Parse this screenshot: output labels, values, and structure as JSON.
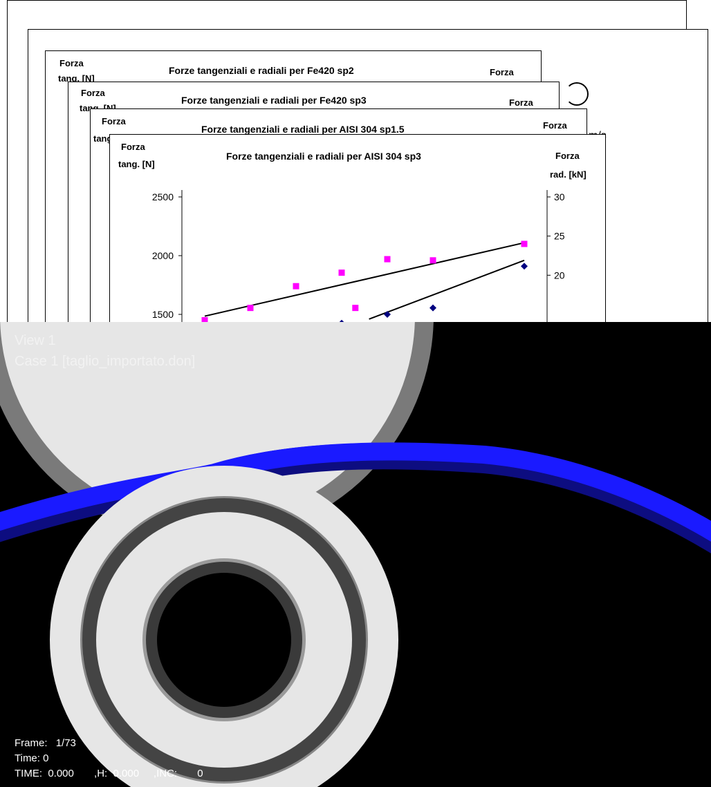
{
  "sheets": {
    "back_fragment": "m/s",
    "fe420_sp2": {
      "title": "Forze tangenziali e radiali per Fe420 sp2",
      "left_label_1": "Forza",
      "left_label_2": "tang. [N]",
      "right_label_1": "Forza"
    },
    "fe420_sp3": {
      "title": "Forze tangenziali e radiali per Fe420 sp3",
      "left_label_1": "Forza",
      "left_label_2": "tang. [N]",
      "right_label_1": "Forza"
    },
    "aisi304_sp15": {
      "title": "Forze tangenziali e radiali per AISI 304 sp1.5",
      "left_label_1": "Forza",
      "left_label_2": "tang. [N",
      "right_label_1": "Forza"
    }
  },
  "chart_data": {
    "type": "scatter",
    "title": "Forze tangenziali e radiali per AISI 304 sp3",
    "ylabel_left_1": "Forza",
    "ylabel_left_2": "tang. [N]",
    "ylabel_right_1": "Forza",
    "ylabel_right_2": "rad. [kN]",
    "y_left_ticks": [
      "2500",
      "2000",
      "1500"
    ],
    "y_right_ticks": [
      "30",
      "25",
      "20"
    ],
    "ylim_left": [
      1500,
      2500
    ],
    "ylim_right": [
      15,
      30
    ],
    "series": [
      {
        "color": "#ff00ff",
        "marker": "square",
        "points": [
          [
            1,
            1450
          ],
          [
            2,
            1555
          ],
          [
            3,
            1740
          ],
          [
            4,
            1855
          ],
          [
            4.3,
            1555
          ],
          [
            5,
            1970
          ],
          [
            6,
            1960
          ],
          [
            8,
            2100
          ]
        ],
        "trend": [
          [
            1,
            1485
          ],
          [
            8,
            2110
          ]
        ]
      },
      {
        "color": "#000080",
        "marker": "diamond",
        "points": [
          [
            4,
            1425
          ],
          [
            5,
            1500
          ],
          [
            6,
            1555
          ],
          [
            8,
            1910
          ]
        ],
        "trend": [
          [
            4.6,
            1460
          ],
          [
            8,
            1960
          ]
        ]
      }
    ]
  },
  "simulation": {
    "view_label": "View 1",
    "case_label": "Case 1  [taglio_importato.don]",
    "frame_label": "Frame:",
    "frame_value": "1/73",
    "time_label": "Time: 0",
    "time_line": "TIME:  0.000       ,H:  0.000     ,INC:       0",
    "colors": {
      "background": "#000000",
      "strip": "#1a1aff",
      "roll": "#e6e6e6",
      "ring": "#444444"
    }
  }
}
